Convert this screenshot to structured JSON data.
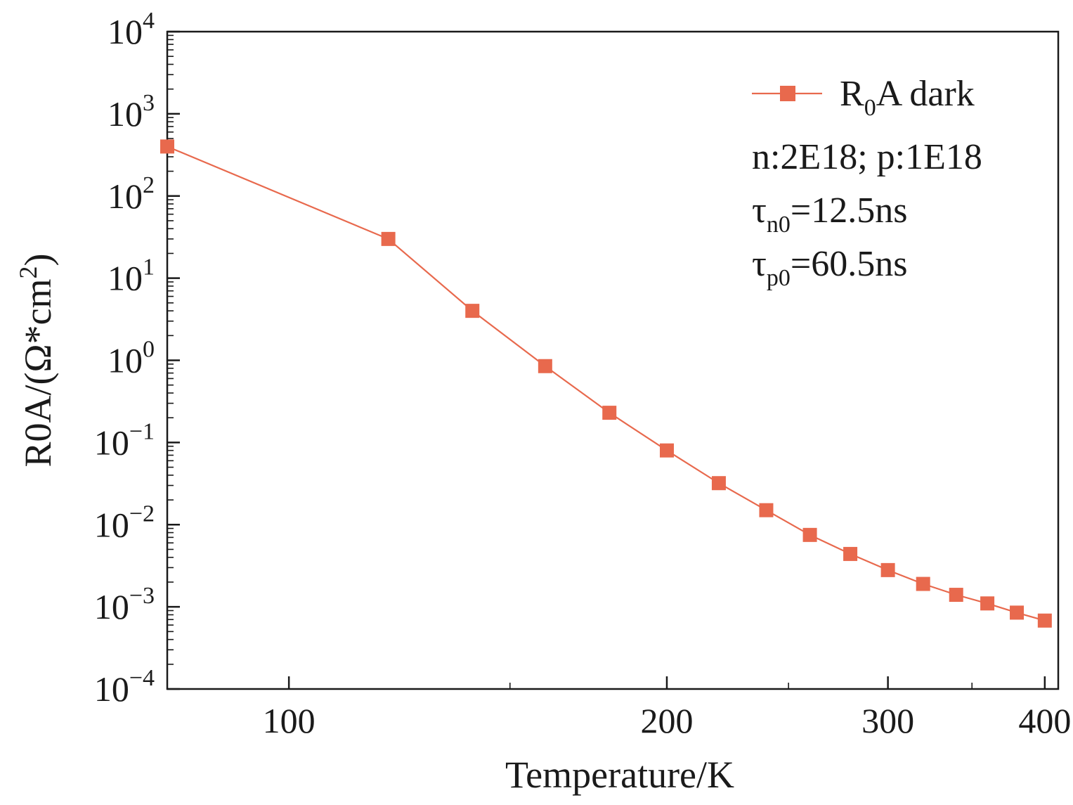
{
  "chart_data": {
    "type": "line",
    "title": "",
    "xlabel": "Temperature/K",
    "ylabel": "R0A/(Ω*cm²)",
    "ylabel_parts": {
      "pre": "R0A/(Ω*cm",
      "sup": "2",
      "post": ")"
    },
    "x_scale": "log",
    "y_scale": "log",
    "xlim": [
      80,
      410
    ],
    "ylim": [
      0.0001,
      10000
    ],
    "x_ticks": [
      {
        "value": 100,
        "label": "100"
      },
      {
        "value": 200,
        "label": "200"
      },
      {
        "value": 300,
        "label": "300"
      },
      {
        "value": 400,
        "label": "400"
      }
    ],
    "x_minor_ticks": [
      150,
      250,
      350
    ],
    "y_ticks": [
      {
        "value": 0.0001,
        "base": "10",
        "exp": "−4"
      },
      {
        "value": 0.001,
        "base": "10",
        "exp": "−3"
      },
      {
        "value": 0.01,
        "base": "10",
        "exp": "−2"
      },
      {
        "value": 0.1,
        "base": "10",
        "exp": "−1"
      },
      {
        "value": 1,
        "base": "10",
        "exp": "0"
      },
      {
        "value": 10,
        "base": "10",
        "exp": "1"
      },
      {
        "value": 100,
        "base": "10",
        "exp": "2"
      },
      {
        "value": 1000,
        "base": "10",
        "exp": "3"
      },
      {
        "value": 10000,
        "base": "10",
        "exp": "4"
      }
    ],
    "series": [
      {
        "name": "R0A dark",
        "name_parts": {
          "main": "R",
          "sub": "0",
          "rest": "A dark"
        },
        "color": "#e8694d",
        "marker": "square",
        "x": [
          80,
          120,
          140,
          160,
          180,
          200,
          220,
          240,
          260,
          280,
          300,
          320,
          340,
          360,
          380,
          400
        ],
        "y": [
          400,
          30,
          4,
          0.85,
          0.23,
          0.08,
          0.032,
          0.015,
          0.0075,
          0.0044,
          0.0028,
          0.0019,
          0.0014,
          0.0011,
          0.00085,
          0.00068
        ]
      }
    ],
    "legend_position": "top-right",
    "annotations": [
      {
        "id": "doping",
        "text": "n:2E18; p:1E18"
      },
      {
        "id": "tau-n0",
        "symbol": "τ",
        "sub": "n0",
        "text": "=12.5ns"
      },
      {
        "id": "tau-p0",
        "symbol": "τ",
        "sub": "p0",
        "text": "=60.5ns"
      }
    ]
  }
}
